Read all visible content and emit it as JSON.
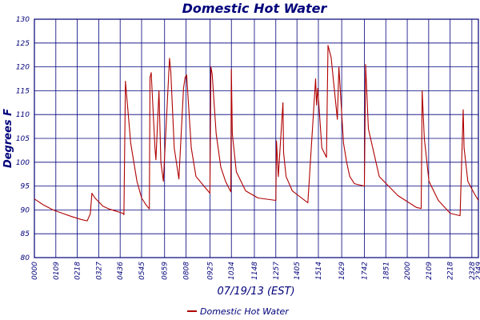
{
  "chart_data": {
    "type": "line",
    "title": "Domestic Hot Water",
    "xlabel": "07/19/13 (EST)",
    "ylabel": "Degrees F",
    "ylim": [
      80,
      130
    ],
    "yticks": [
      80,
      85,
      90,
      95,
      100,
      105,
      110,
      115,
      120,
      125,
      130
    ],
    "xticks": [
      "00:00",
      "01:09",
      "02:18",
      "03:27",
      "04:36",
      "05:45",
      "06:59",
      "08:08",
      "09:25",
      "10:34",
      "11:48",
      "12:57",
      "14:05",
      "15:14",
      "16:29",
      "17:42",
      "18:51",
      "20:00",
      "21:09",
      "22:18",
      "23:28",
      "23:49"
    ],
    "grid": true,
    "legend_position": "bottom-center",
    "color": "#b00000",
    "series": [
      {
        "name": "Domestic Hot Water",
        "x": [
          "00:00",
          "00:30",
          "01:00",
          "01:30",
          "02:00",
          "02:30",
          "02:50",
          "03:00",
          "03:05",
          "03:15",
          "03:30",
          "03:40",
          "04:00",
          "04:30",
          "04:45",
          "04:48",
          "04:53",
          "05:10",
          "05:30",
          "05:45",
          "06:00",
          "06:10",
          "06:12",
          "06:16",
          "06:28",
          "06:31",
          "06:41",
          "06:47",
          "06:55",
          "07:15",
          "07:19",
          "07:30",
          "07:45",
          "08:00",
          "08:05",
          "08:10",
          "08:25",
          "08:40",
          "09:25",
          "09:28",
          "09:32",
          "09:45",
          "10:00",
          "10:15",
          "10:32",
          "10:34",
          "10:37",
          "10:50",
          "11:20",
          "12:00",
          "12:57",
          "12:59",
          "13:05",
          "13:20",
          "13:22",
          "13:30",
          "13:50",
          "14:20",
          "14:40",
          "15:05",
          "15:08",
          "15:12",
          "15:25",
          "15:40",
          "15:45",
          "15:55",
          "16:15",
          "16:20",
          "16:35",
          "16:45",
          "16:55",
          "17:10",
          "17:42",
          "17:46",
          "17:55",
          "18:30",
          "19:30",
          "20:30",
          "20:45",
          "20:48",
          "20:55",
          "21:10",
          "21:40",
          "22:18",
          "22:50",
          "23:00",
          "23:03",
          "23:15",
          "23:35",
          "23:49"
        ],
        "values": [
          92.3,
          91,
          90,
          89.3,
          88.6,
          88,
          87.7,
          89.2,
          93.5,
          92.5,
          91.5,
          90.8,
          90.2,
          89.6,
          89.3,
          89,
          117,
          104,
          96,
          92.5,
          91,
          90.2,
          117.8,
          118.8,
          103,
          100.5,
          115,
          100,
          96,
          121.8,
          119,
          103,
          96.5,
          115.5,
          117.8,
          118.3,
          103,
          97,
          93.5,
          120,
          118.5,
          106,
          99,
          96,
          93.8,
          119.5,
          106,
          98,
          94,
          92.5,
          92,
          104.5,
          97,
          112.5,
          102,
          97,
          94,
          92.5,
          91.5,
          117.5,
          112,
          115.5,
          103,
          101,
          124.5,
          122,
          109,
          120,
          104,
          100,
          97,
          95.5,
          95,
          120.5,
          107,
          97,
          93,
          90.5,
          90.3,
          115,
          105,
          96,
          92,
          89.3,
          88.8,
          111,
          103,
          96,
          93.5,
          92
        ]
      }
    ]
  }
}
